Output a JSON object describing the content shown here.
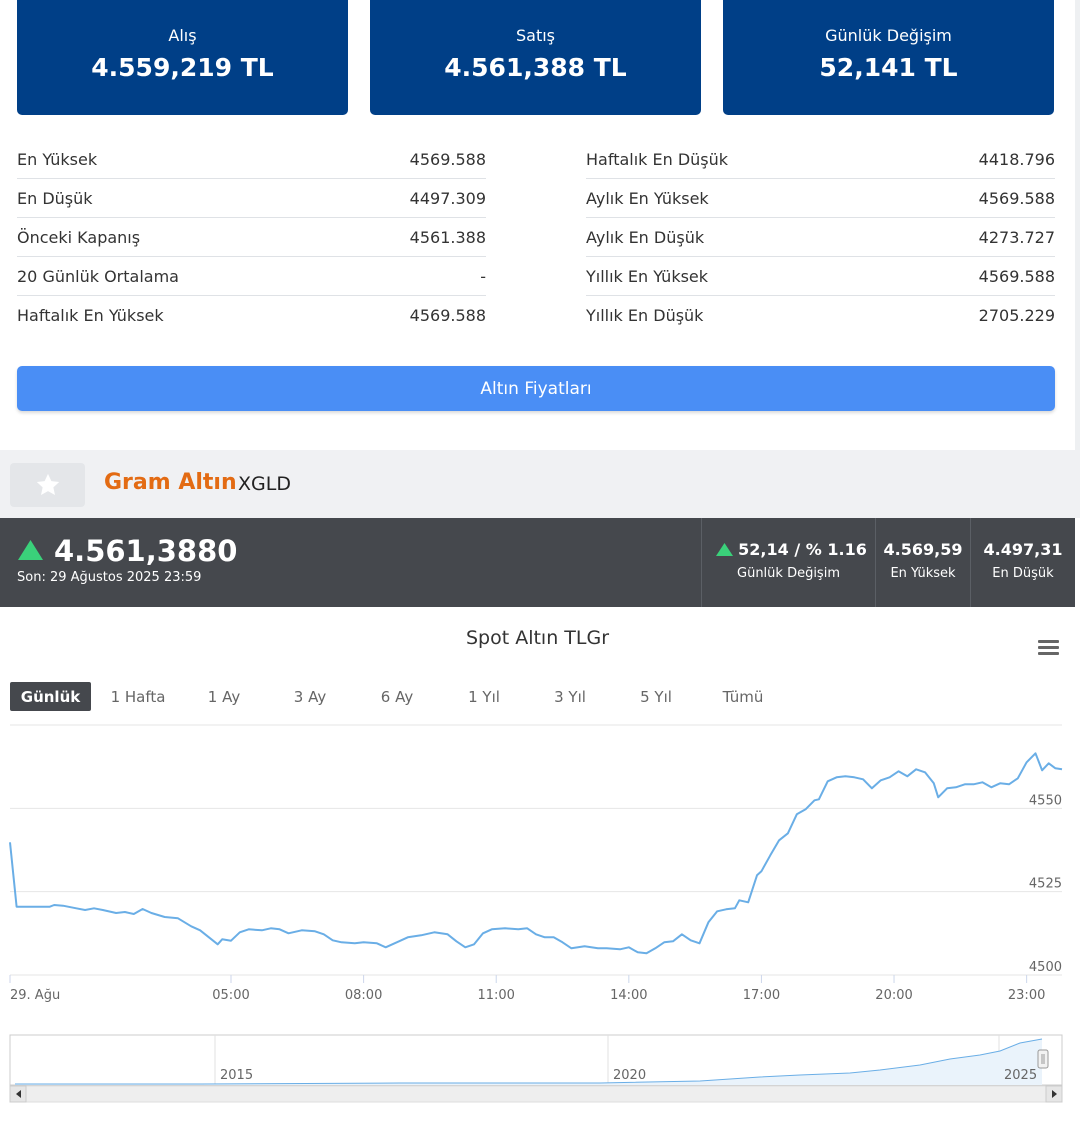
{
  "cards": [
    {
      "label": "Alış",
      "value": "4.559,219 TL"
    },
    {
      "label": "Satış",
      "value": "4.561,388 TL"
    },
    {
      "label": "Günlük Değişim",
      "value": "52,141 TL"
    }
  ],
  "stats_left": [
    {
      "label": "En Yüksek",
      "value": "4569.588"
    },
    {
      "label": "En Düşük",
      "value": "4497.309"
    },
    {
      "label": "Önceki Kapanış",
      "value": "4561.388"
    },
    {
      "label": "20 Günlük Ortalama",
      "value": "-"
    },
    {
      "label": "Haftalık En Yüksek",
      "value": "4569.588"
    }
  ],
  "stats_right": [
    {
      "label": "Haftalık En Düşük",
      "value": "4418.796"
    },
    {
      "label": "Aylık En Yüksek",
      "value": "4569.588"
    },
    {
      "label": "Aylık En Düşük",
      "value": "4273.727"
    },
    {
      "label": "Yıllık En Yüksek",
      "value": "4569.588"
    },
    {
      "label": "Yıllık En Düşük",
      "value": "2705.229"
    }
  ],
  "prices_button": "Altın Fiyatları",
  "instrument": {
    "name": "Gram Altın",
    "code": "XGLD"
  },
  "quote": {
    "price": "4.561,3880",
    "time": "Son: 29 Ağustos 2025 23:59",
    "change_value": "52,14 / % 1.16",
    "change_label": "Günlük Değişim",
    "high_value": "4.569,59",
    "high_label": "En Yüksek",
    "low_value": "4.497,31",
    "low_label": "En Düşük"
  },
  "colors": {
    "accent_dark": "#003f87",
    "button_blue": "#4a8ef5",
    "brand_orange": "#e36b13",
    "up_green": "#3ad17a",
    "line": "#6aaee6"
  },
  "range_tabs": [
    "Günlük",
    "1 Hafta",
    "1 Ay",
    "3 Ay",
    "6 Ay",
    "1 Yıl",
    "3 Yıl",
    "5 Yıl",
    "Tümü"
  ],
  "active_range": "Günlük",
  "chart_data": {
    "type": "line",
    "title": "Spot Altın TLGr",
    "xlabel": "",
    "ylabel": "",
    "y_ticks": [
      4500,
      4525,
      4550
    ],
    "ylim": [
      4500,
      4575
    ],
    "x_ticks": [
      {
        "h": 0,
        "label": "29. Ağu"
      },
      {
        "h": 5,
        "label": "05:00"
      },
      {
        "h": 8,
        "label": "08:00"
      },
      {
        "h": 11,
        "label": "11:00"
      },
      {
        "h": 14,
        "label": "14:00"
      },
      {
        "h": 17,
        "label": "17:00"
      },
      {
        "h": 20,
        "label": "20:00"
      },
      {
        "h": 23,
        "label": "23:00"
      }
    ],
    "xlim_hours": [
      0,
      23.8
    ],
    "grid": true,
    "series": [
      {
        "name": "",
        "points": [
          [
            0.0,
            4539.8
          ],
          [
            0.15,
            4520.5
          ],
          [
            0.6,
            4520.5
          ],
          [
            0.9,
            4520.5
          ],
          [
            1.0,
            4521.0
          ],
          [
            1.2,
            4520.8
          ],
          [
            1.5,
            4520.0
          ],
          [
            1.7,
            4519.5
          ],
          [
            1.9,
            4520.0
          ],
          [
            2.1,
            4519.5
          ],
          [
            2.4,
            4518.6
          ],
          [
            2.6,
            4518.9
          ],
          [
            2.8,
            4518.3
          ],
          [
            3.0,
            4519.8
          ],
          [
            3.2,
            4518.6
          ],
          [
            3.5,
            4517.4
          ],
          [
            3.8,
            4517.0
          ],
          [
            4.1,
            4514.6
          ],
          [
            4.3,
            4513.4
          ],
          [
            4.5,
            4511.3
          ],
          [
            4.7,
            4509.2
          ],
          [
            4.8,
            4510.7
          ],
          [
            5.0,
            4510.3
          ],
          [
            5.2,
            4512.8
          ],
          [
            5.4,
            4513.7
          ],
          [
            5.7,
            4513.4
          ],
          [
            5.9,
            4514.0
          ],
          [
            6.1,
            4513.7
          ],
          [
            6.3,
            4512.5
          ],
          [
            6.6,
            4513.4
          ],
          [
            6.9,
            4513.1
          ],
          [
            7.1,
            4512.2
          ],
          [
            7.3,
            4510.4
          ],
          [
            7.5,
            4509.8
          ],
          [
            7.8,
            4509.5
          ],
          [
            8.0,
            4509.8
          ],
          [
            8.3,
            4509.5
          ],
          [
            8.5,
            4508.3
          ],
          [
            8.8,
            4510.1
          ],
          [
            9.0,
            4511.3
          ],
          [
            9.3,
            4511.9
          ],
          [
            9.6,
            4512.8
          ],
          [
            9.9,
            4512.2
          ],
          [
            10.1,
            4510.1
          ],
          [
            10.3,
            4508.3
          ],
          [
            10.5,
            4509.2
          ],
          [
            10.7,
            4512.5
          ],
          [
            10.9,
            4513.7
          ],
          [
            11.2,
            4514.0
          ],
          [
            11.5,
            4513.7
          ],
          [
            11.7,
            4514.0
          ],
          [
            11.9,
            4512.2
          ],
          [
            12.1,
            4511.3
          ],
          [
            12.3,
            4511.3
          ],
          [
            12.5,
            4509.8
          ],
          [
            12.7,
            4508.0
          ],
          [
            13.0,
            4508.6
          ],
          [
            13.3,
            4508.0
          ],
          [
            13.5,
            4508.0
          ],
          [
            13.8,
            4507.7
          ],
          [
            14.0,
            4508.3
          ],
          [
            14.2,
            4506.8
          ],
          [
            14.4,
            4506.5
          ],
          [
            14.6,
            4508.0
          ],
          [
            14.8,
            4509.8
          ],
          [
            15.0,
            4510.1
          ],
          [
            15.2,
            4512.2
          ],
          [
            15.4,
            4510.4
          ],
          [
            15.6,
            4509.5
          ],
          [
            15.8,
            4515.8
          ],
          [
            16.0,
            4519.1
          ],
          [
            16.2,
            4519.7
          ],
          [
            16.4,
            4520.0
          ],
          [
            16.5,
            4522.4
          ],
          [
            16.7,
            4521.8
          ],
          [
            16.9,
            4529.9
          ],
          [
            17.0,
            4531.1
          ],
          [
            17.2,
            4535.9
          ],
          [
            17.4,
            4540.4
          ],
          [
            17.6,
            4542.5
          ],
          [
            17.8,
            4548.2
          ],
          [
            18.0,
            4549.7
          ],
          [
            18.2,
            4552.4
          ],
          [
            18.3,
            4552.7
          ],
          [
            18.5,
            4558.1
          ],
          [
            18.7,
            4559.3
          ],
          [
            18.9,
            4559.6
          ],
          [
            19.1,
            4559.3
          ],
          [
            19.3,
            4558.7
          ],
          [
            19.5,
            4556.0
          ],
          [
            19.7,
            4558.4
          ],
          [
            19.9,
            4559.3
          ],
          [
            20.1,
            4561.1
          ],
          [
            20.3,
            4559.6
          ],
          [
            20.5,
            4561.7
          ],
          [
            20.7,
            4560.8
          ],
          [
            20.9,
            4557.5
          ],
          [
            21.0,
            4553.3
          ],
          [
            21.2,
            4556.0
          ],
          [
            21.4,
            4556.3
          ],
          [
            21.6,
            4557.2
          ],
          [
            21.8,
            4557.2
          ],
          [
            22.0,
            4557.8
          ],
          [
            22.2,
            4556.3
          ],
          [
            22.4,
            4557.5
          ],
          [
            22.6,
            4557.2
          ],
          [
            22.8,
            4559.0
          ],
          [
            23.0,
            4563.8
          ],
          [
            23.2,
            4566.5
          ],
          [
            23.35,
            4561.4
          ],
          [
            23.5,
            4563.5
          ],
          [
            23.65,
            4562.0
          ],
          [
            23.8,
            4561.7
          ]
        ]
      }
    ]
  },
  "navigator": {
    "year_labels": [
      "2015",
      "2020",
      "2025"
    ]
  }
}
